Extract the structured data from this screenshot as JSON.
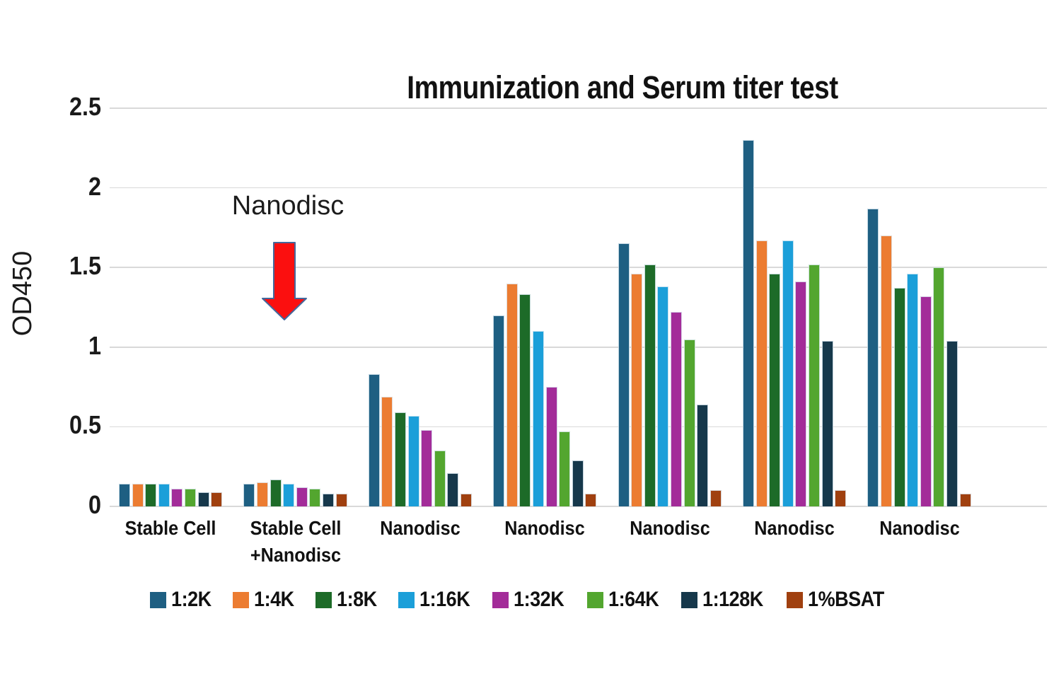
{
  "chart_data": {
    "type": "bar",
    "title": "Immunization and Serum titer test",
    "xlabel": "",
    "ylabel": "OD450",
    "ylim": [
      0,
      2.5
    ],
    "yticks": [
      "0",
      "0.5",
      "1",
      "1.5",
      "2",
      "2.5"
    ],
    "grid": true,
    "legend_position": "bottom",
    "background_color": "#ffffff",
    "gridline_color": "#d9d9d9",
    "categories": [
      "Stable Cell",
      "Stable Cell\n+Nanodisc",
      "Nanodisc",
      "Nanodisc",
      "Nanodisc",
      "Nanodisc",
      "Nanodisc"
    ],
    "series": [
      {
        "name": "1:2K",
        "color": "#1e5f82",
        "values": [
          0.14,
          0.14,
          0.83,
          1.2,
          1.65,
          2.3,
          1.87
        ]
      },
      {
        "name": "1:4K",
        "color": "#ec7c31",
        "values": [
          0.14,
          0.15,
          0.69,
          1.4,
          1.46,
          1.67,
          1.7
        ]
      },
      {
        "name": "1:8K",
        "color": "#1d6b28",
        "values": [
          0.14,
          0.17,
          0.59,
          1.33,
          1.52,
          1.46,
          1.37
        ]
      },
      {
        "name": "1:16K",
        "color": "#1b9fd9",
        "values": [
          0.14,
          0.14,
          0.57,
          1.1,
          1.38,
          1.67,
          1.46
        ]
      },
      {
        "name": "1:32K",
        "color": "#a32c99",
        "values": [
          0.11,
          0.12,
          0.48,
          0.75,
          1.22,
          1.41,
          1.32
        ]
      },
      {
        "name": "1:64K",
        "color": "#53a62f",
        "values": [
          0.11,
          0.11,
          0.35,
          0.47,
          1.05,
          1.52,
          1.5
        ]
      },
      {
        "name": "1:128K",
        "color": "#16384b",
        "values": [
          0.09,
          0.08,
          0.21,
          0.29,
          0.64,
          1.04,
          1.04
        ]
      },
      {
        "name": "1%BSAT",
        "color": "#a0400f",
        "values": [
          0.09,
          0.08,
          0.08,
          0.08,
          0.1,
          0.1,
          0.08
        ]
      }
    ],
    "annotation": {
      "text": "Nanodisc",
      "arrow_color": "#fb0f0f",
      "arrow_stroke": "#44679b"
    }
  }
}
